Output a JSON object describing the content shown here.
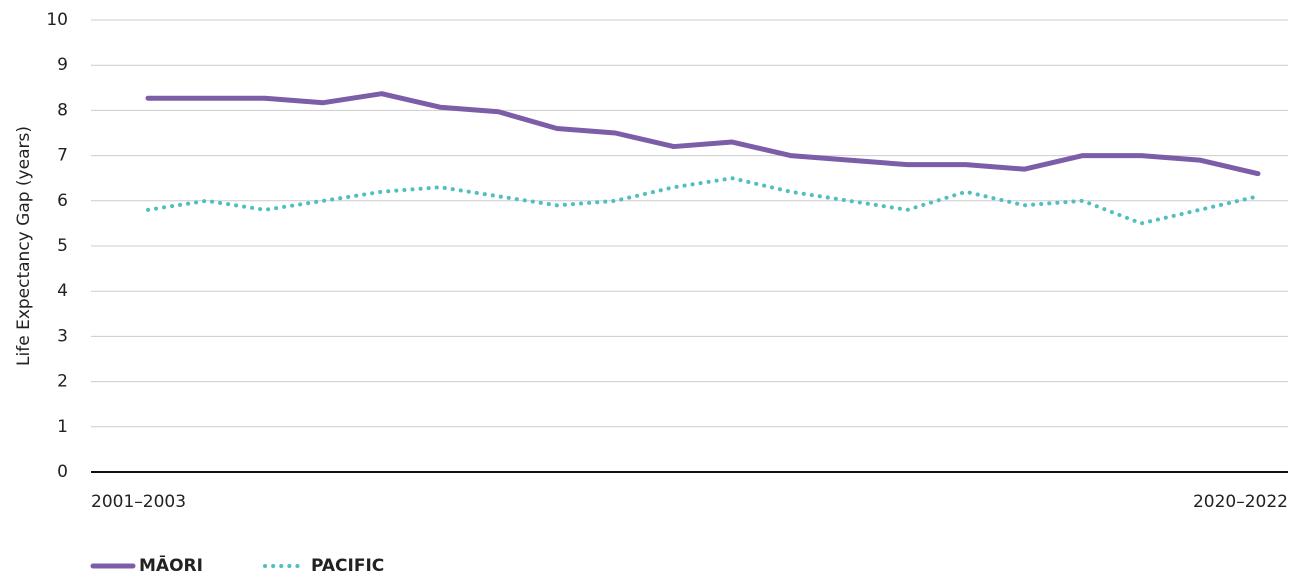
{
  "chart_data": {
    "type": "line",
    "y_label": "Life Expectancy Gap (years)",
    "categories": [
      "2001–2003",
      null,
      null,
      null,
      null,
      null,
      null,
      null,
      null,
      null,
      null,
      null,
      null,
      null,
      null,
      null,
      null,
      null,
      null,
      "2020–2022"
    ],
    "series": [
      {
        "name": "MĀORI",
        "color": "#7b5ea7",
        "style": "solid",
        "values": [
          8.27,
          8.27,
          8.27,
          8.17,
          8.37,
          8.07,
          7.97,
          7.6,
          7.5,
          7.2,
          7.3,
          7.0,
          6.9,
          6.8,
          6.8,
          6.7,
          7.0,
          7.0,
          6.9,
          6.6
        ]
      },
      {
        "name": "PACIFIC",
        "color": "#4fbfbf",
        "style": "dotted",
        "values": [
          5.8,
          6.0,
          5.8,
          6.0,
          6.2,
          6.3,
          6.1,
          5.9,
          6.0,
          6.3,
          6.5,
          6.2,
          6.0,
          5.8,
          6.2,
          5.9,
          6.0,
          5.5,
          5.8,
          6.1
        ]
      }
    ],
    "ylim": [
      0,
      10
    ],
    "yticks": [
      0,
      1,
      2,
      3,
      4,
      5,
      6,
      7,
      8,
      9,
      10
    ],
    "grid": true
  }
}
